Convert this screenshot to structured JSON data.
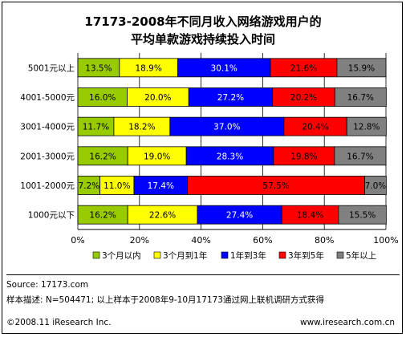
{
  "chart_data": {
    "type": "bar",
    "orientation": "horizontal",
    "stacked": "percent",
    "title": "17173-2008年不同月收入网络游戏用户的",
    "subtitle": "平均单款游戏持续投入时间",
    "categories": [
      "5001元以上",
      "4001-5000元",
      "3001-4000元",
      "2001-3000元",
      "1001-2000元",
      "1000元以下"
    ],
    "series": [
      {
        "name": "3个月以内",
        "color": "#99cc00",
        "values": [
          13.5,
          16.0,
          11.7,
          16.2,
          7.2,
          16.2
        ]
      },
      {
        "name": "3个月到1年",
        "color": "#ffff00",
        "values": [
          18.9,
          20.0,
          18.2,
          19.0,
          11.0,
          22.6
        ]
      },
      {
        "name": "1年到3年",
        "color": "#0000ff",
        "values": [
          30.1,
          27.2,
          37.0,
          28.3,
          17.4,
          27.4
        ]
      },
      {
        "name": "3年到5年",
        "color": "#ff0000",
        "values": [
          21.6,
          20.2,
          20.4,
          19.8,
          57.5,
          18.4
        ]
      },
      {
        "name": "5年以上",
        "color": "#808080",
        "values": [
          15.9,
          16.7,
          12.8,
          16.7,
          7.0,
          15.5
        ]
      }
    ],
    "xlim": [
      0,
      100
    ],
    "x_ticks": [
      "0%",
      "20%",
      "40%",
      "60%",
      "80%",
      "100%"
    ],
    "grid": true,
    "legend": "bottom"
  },
  "footer": {
    "source": "Source:  17173.com",
    "sample": "样本描述:  N=504471; 以上样本于2008年9-10月17173通过网上联机调研方式获得",
    "copyright": "©2008.11 iResearch Inc.",
    "website": "www.iresearch.com.cn"
  }
}
